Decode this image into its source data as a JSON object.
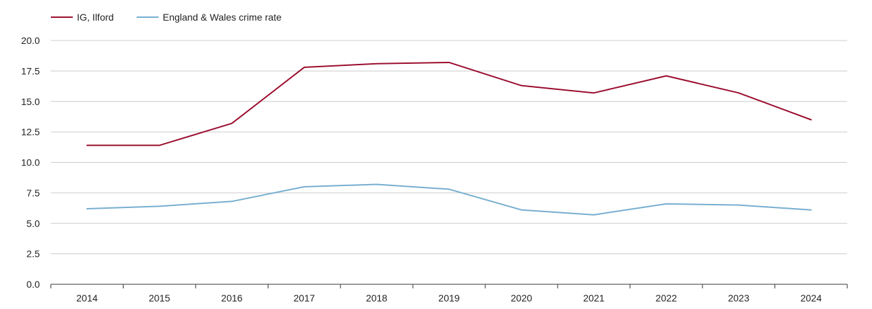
{
  "chart_data": {
    "type": "line",
    "title": "",
    "xlabel": "",
    "ylabel": "",
    "ylim": [
      0,
      20
    ],
    "yticks": [
      "0.0",
      "2.5",
      "5.0",
      "7.5",
      "10.0",
      "12.5",
      "15.0",
      "17.5",
      "20.0"
    ],
    "ytick_values": [
      0,
      2.5,
      5,
      7.5,
      10,
      12.5,
      15,
      17.5,
      20
    ],
    "categories": [
      "2014",
      "2015",
      "2016",
      "2017",
      "2018",
      "2019",
      "2020",
      "2021",
      "2022",
      "2023",
      "2024"
    ],
    "grid": true,
    "legend_position": "top-left",
    "series": [
      {
        "name": "IG, Ilford",
        "color": "#9b0d2e",
        "values": [
          11.4,
          11.4,
          13.2,
          17.8,
          18.1,
          18.2,
          16.3,
          15.7,
          17.1,
          15.7,
          13.5
        ]
      },
      {
        "name": "England & Wales crime rate",
        "color": "#76aed0",
        "values": [
          6.2,
          6.4,
          6.8,
          8.0,
          8.2,
          7.8,
          6.1,
          5.7,
          6.6,
          6.5,
          6.1
        ]
      }
    ]
  }
}
